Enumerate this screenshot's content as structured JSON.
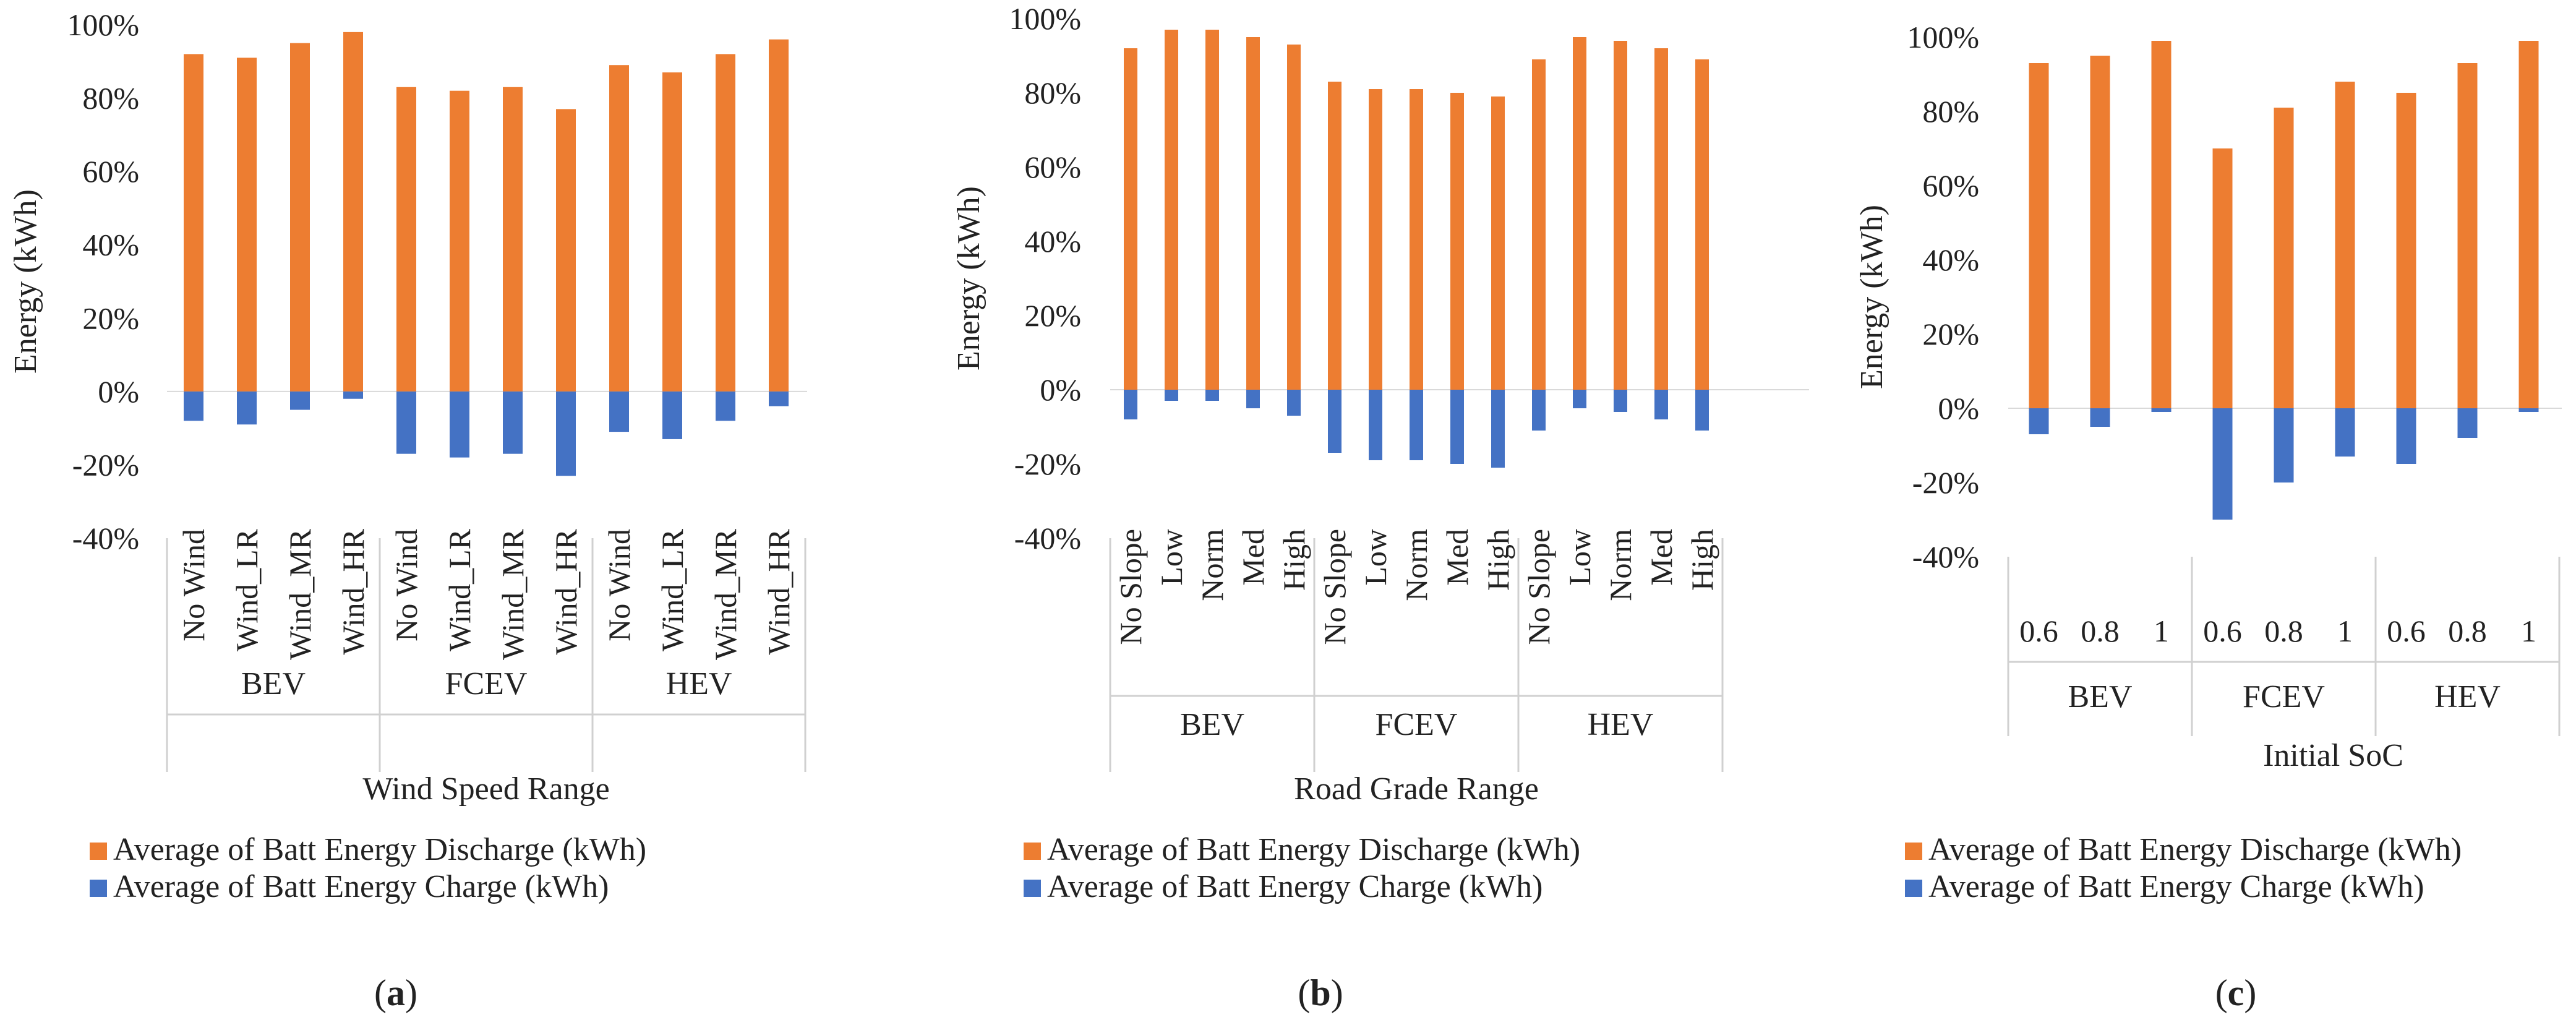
{
  "colors": {
    "discharge": "#ED7D31",
    "charge": "#4472C4",
    "grid": "#D9D9D9",
    "text": "#222222"
  },
  "chart_data": [
    {
      "type": "bar",
      "panel_label": "a",
      "title": "",
      "xlabel": "Wind Speed Range",
      "ylabel": "Energy  (kWh)",
      "ylim": [
        -0.4,
        1.0
      ],
      "y_ticks": [
        "-40%",
        "-20%",
        "0%",
        "20%",
        "40%",
        "60%",
        "80%",
        "100%"
      ],
      "groups": [
        {
          "name": "BEV",
          "categories": [
            "No Wind",
            "Wind_LR",
            "Wind_MR",
            "Wind_HR"
          ]
        },
        {
          "name": "FCEV",
          "categories": [
            "No Wind",
            "Wind_LR",
            "Wind_MR",
            "Wind_HR"
          ]
        },
        {
          "name": "HEV",
          "categories": [
            "No Wind",
            "Wind_LR",
            "Wind_MR",
            "Wind_HR"
          ]
        }
      ],
      "series": [
        {
          "name": "Average of Batt Energy Discharge (kWh)",
          "values": [
            0.92,
            0.91,
            0.95,
            0.98,
            0.83,
            0.82,
            0.83,
            0.77,
            0.89,
            0.87,
            0.92,
            0.96
          ]
        },
        {
          "name": "Average of Batt Energy Charge (kWh)",
          "values": [
            -0.08,
            -0.09,
            -0.05,
            -0.02,
            -0.17,
            -0.18,
            -0.17,
            -0.23,
            -0.11,
            -0.13,
            -0.08,
            -0.04
          ]
        }
      ]
    },
    {
      "type": "bar",
      "panel_label": "b",
      "title": "",
      "xlabel": "Road Grade Range",
      "ylabel": "Energy  (kWh)",
      "ylim": [
        -0.4,
        1.0
      ],
      "y_ticks": [
        "-40%",
        "-20%",
        "0%",
        "20%",
        "40%",
        "60%",
        "80%",
        "100%"
      ],
      "groups": [
        {
          "name": "BEV",
          "categories": [
            "No Slope",
            "Low",
            "Norm",
            "Med",
            "High"
          ]
        },
        {
          "name": "FCEV",
          "categories": [
            "No Slope",
            "Low",
            "Norm",
            "Med",
            "High"
          ]
        },
        {
          "name": "HEV",
          "categories": [
            "No Slope",
            "Low",
            "Norm",
            "Med",
            "High"
          ]
        }
      ],
      "series": [
        {
          "name": "Average of Batt Energy Discharge (kWh)",
          "values": [
            0.92,
            0.97,
            0.97,
            0.95,
            0.93,
            0.83,
            0.81,
            0.81,
            0.8,
            0.79,
            0.89,
            0.95,
            0.94,
            0.92,
            0.89
          ]
        },
        {
          "name": "Average of Batt Energy Charge (kWh)",
          "values": [
            -0.08,
            -0.03,
            -0.03,
            -0.05,
            -0.07,
            -0.17,
            -0.19,
            -0.19,
            -0.2,
            -0.21,
            -0.11,
            -0.05,
            -0.06,
            -0.08,
            -0.11
          ]
        }
      ]
    },
    {
      "type": "bar",
      "panel_label": "c",
      "title": "",
      "xlabel": "Initial SoC",
      "ylabel": "Energy  (kWh)",
      "ylim": [
        -0.4,
        1.0
      ],
      "y_ticks": [
        "-40%",
        "-20%",
        "0%",
        "20%",
        "40%",
        "60%",
        "80%",
        "100%"
      ],
      "groups": [
        {
          "name": "BEV",
          "categories": [
            "0.6",
            "0.8",
            "1"
          ]
        },
        {
          "name": "FCEV",
          "categories": [
            "0.6",
            "0.8",
            "1"
          ]
        },
        {
          "name": "HEV",
          "categories": [
            "0.6",
            "0.8",
            "1"
          ]
        }
      ],
      "series": [
        {
          "name": "Average of Batt Energy Discharge (kWh)",
          "values": [
            0.93,
            0.95,
            0.99,
            0.7,
            0.81,
            0.88,
            0.85,
            0.93,
            0.99
          ]
        },
        {
          "name": "Average of Batt Energy Charge (kWh)",
          "values": [
            -0.07,
            -0.05,
            -0.01,
            -0.3,
            -0.2,
            -0.13,
            -0.15,
            -0.08,
            -0.01
          ]
        }
      ]
    }
  ]
}
